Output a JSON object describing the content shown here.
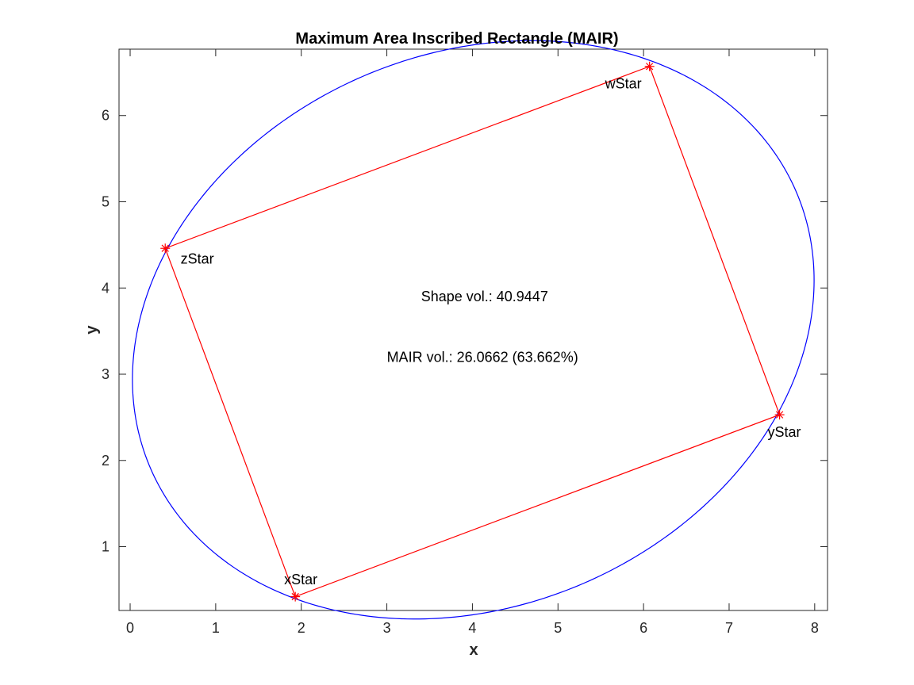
{
  "chart_data": {
    "type": "line",
    "title": "Maximum Area Inscribed Rectangle (MAIR)",
    "xlabel": "x",
    "ylabel": "y",
    "xlim": [
      -0.13,
      8.15
    ],
    "ylim": [
      0.26,
      6.77
    ],
    "xticks": [
      0,
      1,
      2,
      3,
      4,
      5,
      6,
      7,
      8
    ],
    "yticks": [
      1,
      2,
      3,
      4,
      5,
      6
    ],
    "grid": false,
    "colors": {
      "ellipse": "#0000ff",
      "rectangle": "#ff0000",
      "markers": "#ff0000",
      "axes": "#262626"
    },
    "ellipse": {
      "cx": 4.01,
      "cy": 3.515,
      "rx": 4.1,
      "ry": 3.21,
      "tilt_deg": 22.4
    },
    "points": [
      {
        "name": "xStar",
        "x": 1.93,
        "y": 0.42,
        "label_x": 1.8,
        "label_y": 0.62
      },
      {
        "name": "yStar",
        "x": 7.59,
        "y": 2.53,
        "label_x": 7.45,
        "label_y": 2.33
      },
      {
        "name": "wStar",
        "x": 6.07,
        "y": 6.57,
        "label_x": 5.55,
        "label_y": 6.37
      },
      {
        "name": "zStar",
        "x": 0.41,
        "y": 4.46,
        "label_x": 0.59,
        "label_y": 4.34
      }
    ],
    "rectangle_order": [
      "xStar",
      "yStar",
      "wStar",
      "zStar"
    ],
    "annotations": [
      {
        "text": "Shape vol.: 40.9447",
        "x": 3.4,
        "y": 3.9
      },
      {
        "text": "MAIR vol.: 26.0662 (63.662%)",
        "x": 3.0,
        "y": 3.2
      }
    ]
  }
}
